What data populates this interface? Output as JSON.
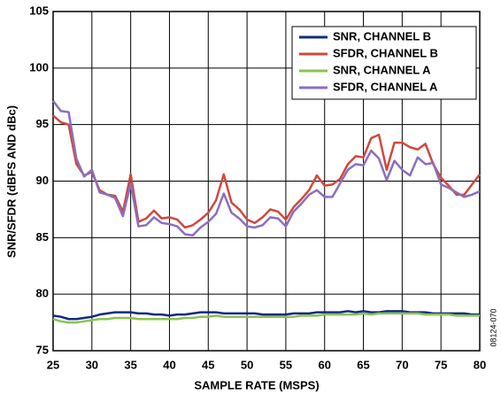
{
  "chart_data": {
    "type": "line",
    "xlabel": "SAMPLE RATE (MSPS)",
    "ylabel": "SNR/SFDR (dBFS AND dBc)",
    "annotation": "08124-070",
    "legend": "upper right",
    "grid": true,
    "xlim": [
      25,
      80
    ],
    "xticks": [
      25,
      30,
      35,
      40,
      45,
      50,
      55,
      60,
      65,
      70,
      75,
      80
    ],
    "ylim": [
      75,
      105
    ],
    "yticks": [
      75,
      80,
      85,
      90,
      95,
      100,
      105
    ],
    "x": [
      25,
      26,
      27,
      28,
      29,
      30,
      31,
      32,
      33,
      34,
      35,
      36,
      37,
      38,
      39,
      40,
      41,
      42,
      43,
      44,
      45,
      46,
      47,
      48,
      49,
      50,
      51,
      52,
      53,
      54,
      55,
      56,
      57,
      58,
      59,
      60,
      61,
      62,
      63,
      64,
      65,
      66,
      67,
      68,
      69,
      70,
      71,
      72,
      73,
      74,
      75,
      76,
      77,
      78,
      79,
      80
    ],
    "series": [
      {
        "name": "SNR, CHANNEL B",
        "color": "#102a80",
        "values": [
          78.1,
          78.0,
          77.8,
          77.8,
          77.9,
          78.0,
          78.2,
          78.3,
          78.4,
          78.4,
          78.4,
          78.3,
          78.3,
          78.2,
          78.2,
          78.1,
          78.2,
          78.2,
          78.3,
          78.4,
          78.4,
          78.4,
          78.3,
          78.3,
          78.3,
          78.3,
          78.3,
          78.2,
          78.2,
          78.2,
          78.2,
          78.3,
          78.3,
          78.3,
          78.4,
          78.4,
          78.4,
          78.4,
          78.5,
          78.4,
          78.5,
          78.4,
          78.4,
          78.5,
          78.5,
          78.5,
          78.4,
          78.4,
          78.4,
          78.3,
          78.3,
          78.3,
          78.3,
          78.3,
          78.2,
          78.2
        ]
      },
      {
        "name": "SFDR, CHANNEL B",
        "color": "#d0483c",
        "values": [
          95.8,
          95.2,
          95.0,
          91.5,
          90.5,
          90.8,
          89.2,
          88.8,
          88.7,
          87.3,
          90.6,
          86.4,
          86.7,
          87.4,
          86.7,
          86.8,
          86.6,
          85.9,
          86.1,
          86.6,
          87.2,
          88.3,
          90.6,
          88.1,
          87.5,
          86.6,
          86.3,
          86.8,
          87.5,
          87.3,
          86.6,
          87.7,
          88.4,
          89.2,
          90.5,
          89.6,
          89.7,
          90.2,
          91.5,
          92.2,
          92.1,
          93.8,
          94.1,
          91.0,
          93.4,
          93.4,
          93.0,
          92.8,
          93.3,
          91.5,
          90.3,
          89.6,
          88.8,
          88.8,
          89.7,
          90.6
        ]
      },
      {
        "name": "SNR, CHANNEL A",
        "color": "#8cc152",
        "values": [
          77.8,
          77.6,
          77.5,
          77.5,
          77.6,
          77.7,
          77.8,
          77.8,
          77.9,
          77.9,
          77.9,
          77.8,
          77.8,
          77.8,
          77.8,
          77.8,
          77.8,
          77.9,
          77.9,
          78.0,
          78.0,
          78.1,
          78.0,
          78.0,
          78.0,
          78.0,
          78.0,
          78.0,
          78.0,
          78.0,
          78.0,
          78.0,
          78.1,
          78.1,
          78.1,
          78.2,
          78.2,
          78.2,
          78.2,
          78.2,
          78.3,
          78.2,
          78.3,
          78.3,
          78.3,
          78.3,
          78.3,
          78.3,
          78.2,
          78.2,
          78.2,
          78.2,
          78.1,
          78.1,
          78.1,
          78.1
        ]
      },
      {
        "name": "SFDR, CHANNEL A",
        "color": "#8a6fc0",
        "values": [
          97.1,
          96.2,
          96.1,
          92.0,
          90.4,
          91.0,
          89.0,
          88.8,
          88.5,
          86.9,
          89.8,
          86.0,
          86.1,
          86.8,
          86.3,
          86.2,
          86.0,
          85.3,
          85.2,
          85.9,
          86.4,
          87.1,
          88.9,
          87.2,
          86.7,
          86.0,
          85.9,
          86.1,
          86.8,
          86.7,
          86.0,
          87.3,
          88.0,
          88.8,
          89.2,
          88.6,
          88.6,
          89.8,
          91.0,
          91.5,
          91.4,
          92.7,
          92.0,
          90.1,
          91.8,
          91.0,
          90.5,
          92.1,
          91.5,
          91.6,
          89.7,
          89.4,
          89.0,
          88.6,
          88.8,
          89.1
        ]
      }
    ]
  }
}
